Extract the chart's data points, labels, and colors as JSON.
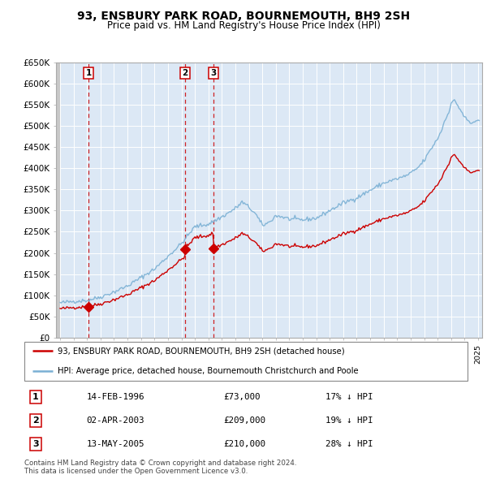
{
  "title": "93, ENSBURY PARK ROAD, BOURNEMOUTH, BH9 2SH",
  "subtitle": "Price paid vs. HM Land Registry's House Price Index (HPI)",
  "ytick_values": [
    0,
    50000,
    100000,
    150000,
    200000,
    250000,
    300000,
    350000,
    400000,
    450000,
    500000,
    550000,
    600000,
    650000
  ],
  "ylabel_ticks": [
    "£0",
    "£50K",
    "£100K",
    "£150K",
    "£200K",
    "£250K",
    "£300K",
    "£350K",
    "£400K",
    "£450K",
    "£500K",
    "£550K",
    "£600K",
    "£650K"
  ],
  "xlim": [
    1993.7,
    2025.3
  ],
  "ylim": [
    0,
    650000
  ],
  "sale_dates": [
    1996.12,
    2003.25,
    2005.37
  ],
  "sale_prices": [
    73000,
    209000,
    210000
  ],
  "sale_labels": [
    "1",
    "2",
    "3"
  ],
  "sale_info": [
    {
      "num": "1",
      "date": "14-FEB-1996",
      "price": "£73,000",
      "pct": "17% ↓ HPI"
    },
    {
      "num": "2",
      "date": "02-APR-2003",
      "price": "£209,000",
      "pct": "19% ↓ HPI"
    },
    {
      "num": "3",
      "date": "13-MAY-2005",
      "price": "£210,000",
      "pct": "28% ↓ HPI"
    }
  ],
  "hpi_color": "#7ab0d4",
  "sale_color": "#cc0000",
  "dashed_color": "#cc0000",
  "legend_line1": "93, ENSBURY PARK ROAD, BOURNEMOUTH, BH9 2SH (detached house)",
  "legend_line2": "HPI: Average price, detached house, Bournemouth Christchurch and Poole",
  "footnote1": "Contains HM Land Registry data © Crown copyright and database right 2024.",
  "footnote2": "This data is licensed under the Open Government Licence v3.0.",
  "plot_bg_color": "#dce8f5",
  "grid_color": "#ffffff",
  "hatch_color": "#d0d0d0"
}
